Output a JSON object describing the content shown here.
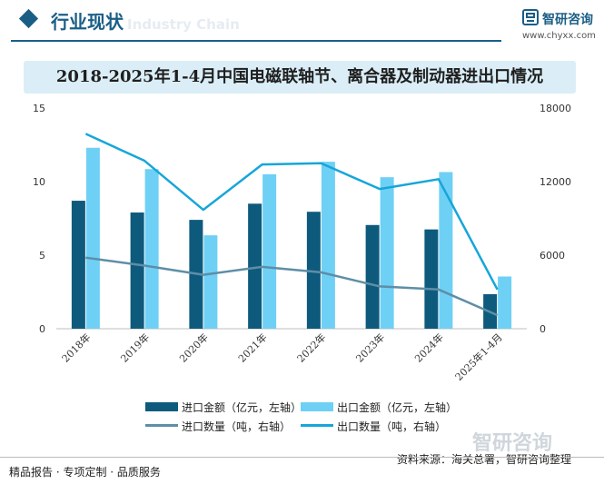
{
  "header": {
    "title": "行业现状",
    "ghost_subtitle": "Industry Chain"
  },
  "brand": {
    "name": "智研咨询",
    "url": "www.chyxx.com",
    "watermark": "智研咨询"
  },
  "chart_data": {
    "type": "bar",
    "title": "2018-2025年1-4月中国电磁联轴节、离合器及制动器进出口情况",
    "categories": [
      "2018年",
      "2019年",
      "2020年",
      "2021年",
      "2022年",
      "2023年",
      "2024年",
      "2025年1-4月"
    ],
    "left_axis": {
      "min": 0,
      "max": 15,
      "ticks": [
        0,
        5,
        10,
        15
      ]
    },
    "right_axis": {
      "min": 0,
      "max": 18000,
      "ticks": [
        0,
        6000,
        12000,
        18000
      ]
    },
    "series": [
      {
        "name": "进口金额（亿元，左轴）",
        "kind": "bar",
        "axis": "left",
        "color": "#0e5a7d",
        "values": [
          8.7,
          7.9,
          7.4,
          8.5,
          7.95,
          7.05,
          6.75,
          2.35
        ]
      },
      {
        "name": "出口金额（亿元，左轴）",
        "kind": "bar",
        "axis": "left",
        "color": "#6fd0f5",
        "values": [
          12.3,
          10.85,
          6.35,
          10.5,
          11.35,
          10.3,
          10.65,
          3.55
        ]
      },
      {
        "name": "进口数量（吨，右轴）",
        "kind": "line",
        "axis": "right",
        "color": "#5e8ea7",
        "values": [
          5800,
          5150,
          4400,
          5050,
          4600,
          3450,
          3200,
          1100
        ]
      },
      {
        "name": "出口数量（吨，右轴）",
        "kind": "line",
        "axis": "right",
        "color": "#16a6d9",
        "values": [
          15900,
          13700,
          9700,
          13400,
          13500,
          11400,
          12200,
          3200
        ]
      }
    ],
    "legend_position": "bottom",
    "grid": false
  },
  "footer": {
    "left": "精品报告 · 专项定制 · 品质服务",
    "source": "资料来源：海关总署，智研咨询整理"
  }
}
